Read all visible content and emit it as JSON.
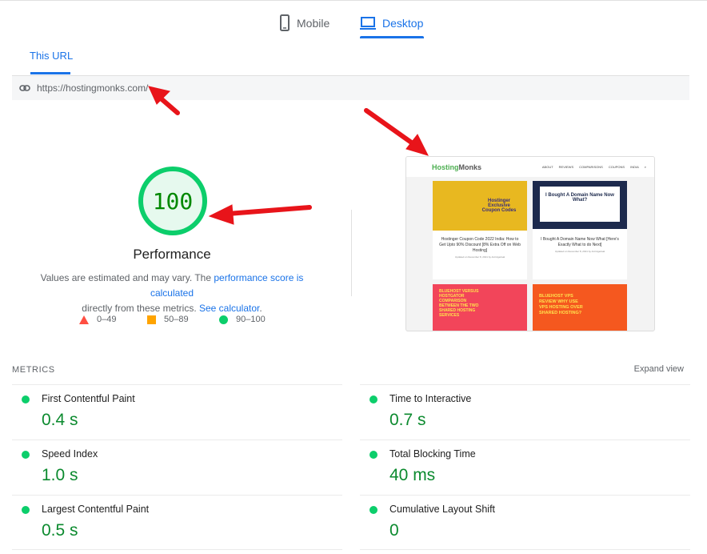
{
  "device_tabs": [
    {
      "label": "Mobile",
      "icon": "phone-icon",
      "active": false
    },
    {
      "label": "Desktop",
      "icon": "laptop-icon",
      "active": true
    }
  ],
  "url_tab": {
    "label": "This URL"
  },
  "url": "https://hostingmonks.com/",
  "score": {
    "value": "100",
    "label": "Performance",
    "color": "#0cce6b"
  },
  "description": {
    "pre": "Values are estimated and may vary. The ",
    "link1": "performance score is calculated",
    "mid": " directly from these metrics. ",
    "link2": "See calculator",
    "post": "."
  },
  "legend": [
    {
      "range": "0–49",
      "color": "#ff4e42",
      "shape": "triangle"
    },
    {
      "range": "50–89",
      "color": "#ffa400",
      "shape": "square"
    },
    {
      "range": "90–100",
      "color": "#0cce6b",
      "shape": "circle"
    }
  ],
  "screenshot": {
    "logo_a": "Hosting",
    "logo_b": "Monks",
    "nav": [
      "ABOUT",
      "REVIEWS",
      "COMPARISONS",
      "COUPONS",
      "INDIA"
    ],
    "cards": [
      {
        "img_text": "Hostinger Exclusive Coupon Codes",
        "title": "Hostinger Coupon Code 2022 India: How to Get Upto 90% Discount [8% Extra Off on Web Hosting]",
        "meta": "Updated on December 8, 2021 by Anil Agarwal"
      },
      {
        "img_text": "I Bought A Domain Name Now What?",
        "title": "I Bought A Domain Name Now What [Here's Exactly What to do Next]",
        "meta": "Updated on December 8, 2021 by Anil Agarwal"
      },
      {
        "img_text": "BLUEHOST VERSUS HOSTGATOR COMPARISON BETWEEN THE TWO SHARED HOSTING SERVICES"
      },
      {
        "img_text": "BLUEHOST VPS REVIEW WHY USE VPS HOSTING OVER SHARED HOSTING?"
      }
    ]
  },
  "metrics": {
    "heading": "METRICS",
    "expand": "Expand view",
    "items": [
      {
        "label": "First Contentful Paint",
        "value": "0.4 s"
      },
      {
        "label": "Time to Interactive",
        "value": "0.7 s"
      },
      {
        "label": "Speed Index",
        "value": "1.0 s"
      },
      {
        "label": "Total Blocking Time",
        "value": "40 ms"
      },
      {
        "label": "Largest Contentful Paint",
        "value": "0.5 s"
      },
      {
        "label": "Cumulative Layout Shift",
        "value": "0"
      }
    ]
  }
}
